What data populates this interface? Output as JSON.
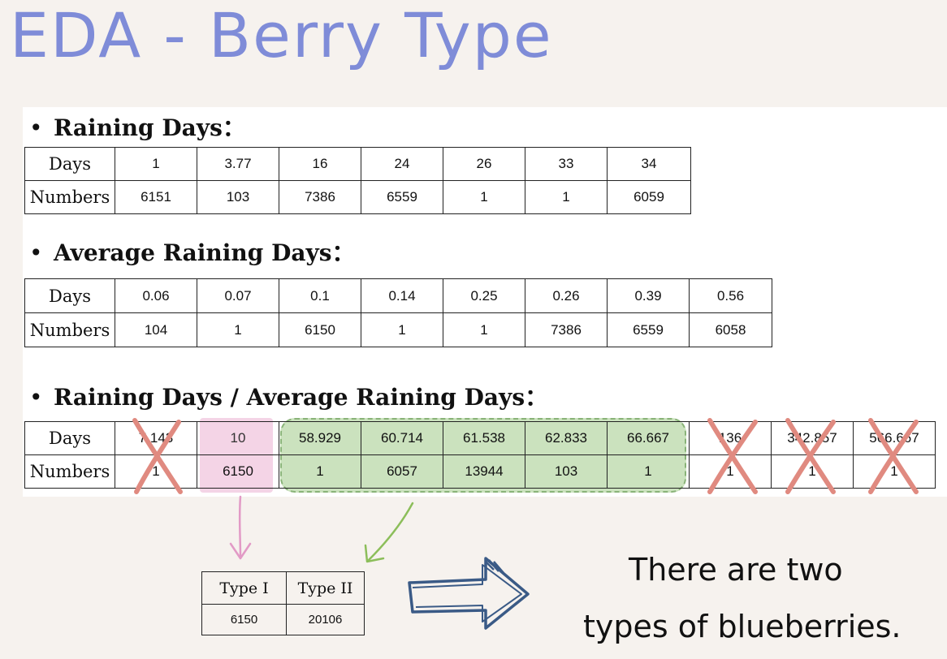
{
  "title": "EDA - Berry Type",
  "sections": {
    "raining_days": "Raining Days：",
    "average_raining_days": "Average Raining  Days：",
    "ratio": "Raining Days / Average Raining  Days："
  },
  "row_labels": {
    "days": "Days",
    "numbers": "Numbers"
  },
  "table_raining_days": {
    "days": [
      "1",
      "3.77",
      "16",
      "24",
      "26",
      "33",
      "34"
    ],
    "numbers": [
      "6151",
      "103",
      "7386",
      "6559",
      "1",
      "1",
      "6059"
    ]
  },
  "table_average_raining_days": {
    "days": [
      "0.06",
      "0.07",
      "0.1",
      "0.14",
      "0.25",
      "0.26",
      "0.39",
      "0.56"
    ],
    "numbers": [
      "104",
      "1",
      "6150",
      "1",
      "1",
      "7386",
      "6559",
      "6058"
    ]
  },
  "table_ratio": {
    "days": [
      "7.143",
      "10",
      "58.929",
      "60.714",
      "61.538",
      "62.833",
      "66.667",
      "136",
      "342.857",
      "566.667"
    ],
    "numbers": [
      "1",
      "6150",
      "1",
      "6057",
      "13944",
      "103",
      "1",
      "1",
      "1",
      "1"
    ]
  },
  "table_types": {
    "headers": [
      "Type I",
      "Type II"
    ],
    "values": [
      "6150",
      "20106"
    ]
  },
  "conclusion": {
    "line1": "There are two",
    "line2": "types of blueberries."
  },
  "colors": {
    "title": "#7f8cd8",
    "pink_highlight": "#e6a0c8",
    "green_highlight": "#8cbe6e",
    "cross": "#e08a80",
    "pink_arrow": "#e29ac6",
    "green_arrow": "#8cbe5a",
    "big_arrow": "#3a5a86"
  }
}
